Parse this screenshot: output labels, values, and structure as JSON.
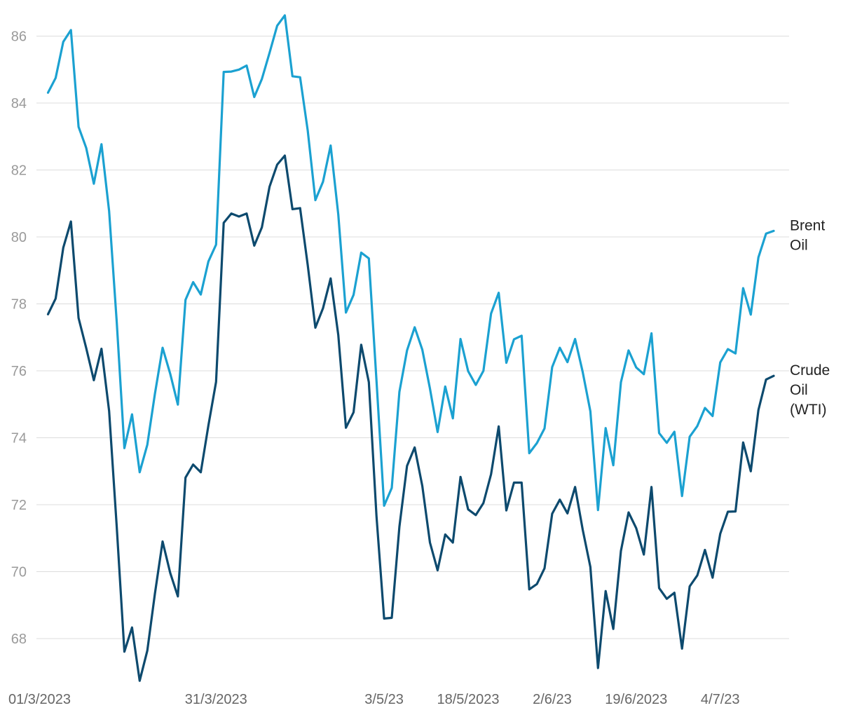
{
  "chart_data": {
    "type": "line",
    "title": "",
    "xlabel": "",
    "ylabel": "",
    "ylim": [
      67,
      87
    ],
    "y_ticks": [
      68,
      70,
      72,
      74,
      76,
      78,
      80,
      82,
      84,
      86
    ],
    "x_tick_labels": [
      "01/3/2023",
      "31/3/2023",
      "3/5/23",
      "18/5/2023",
      "2/6/23",
      "19/6/2023",
      "4/7/23"
    ],
    "x_tick_positions": [
      0,
      22,
      44,
      55,
      66,
      77,
      88
    ],
    "grid": true,
    "legend": "right-inline",
    "series": [
      {
        "name": "Brent Oil",
        "color": "#1ba1d1",
        "values": [
          84.31,
          84.75,
          85.83,
          86.18,
          83.29,
          82.66,
          81.59,
          82.77,
          80.77,
          77.45,
          73.69,
          74.7,
          72.97,
          73.79,
          75.32,
          76.69,
          75.91,
          74.99,
          78.12,
          78.65,
          78.28,
          79.27,
          79.77,
          84.93,
          84.94,
          85.0,
          85.12,
          84.18,
          84.72,
          85.5,
          86.31,
          86.62,
          84.8,
          84.77,
          83.18,
          81.1,
          81.65,
          82.73,
          80.67,
          77.74,
          78.27,
          79.53,
          79.36,
          75.71,
          71.97,
          72.5,
          75.37,
          76.61,
          77.3,
          76.63,
          75.47,
          74.17,
          75.53,
          74.58,
          76.95,
          75.99,
          75.58,
          76.0,
          77.71,
          78.33,
          76.24,
          76.94,
          77.05,
          73.54,
          73.84,
          74.28,
          76.11,
          76.69,
          76.26,
          76.95,
          75.96,
          74.79,
          71.84,
          74.29,
          73.18,
          75.66,
          76.61,
          76.1,
          75.9,
          77.12,
          74.14,
          73.85,
          74.18,
          72.26,
          74.03,
          74.35,
          74.89,
          74.65,
          76.25,
          76.65,
          76.52,
          78.47,
          77.68,
          79.39,
          80.1,
          80.18
        ]
      },
      {
        "name": "Crude Oil\n(WTI)",
        "color": "#0d4a6e",
        "values": [
          77.69,
          78.16,
          79.68,
          80.46,
          77.58,
          76.68,
          75.72,
          76.66,
          74.8,
          71.33,
          67.61,
          68.33,
          66.74,
          67.64,
          69.35,
          70.9,
          69.96,
          69.26,
          72.81,
          73.2,
          72.97,
          74.37,
          75.67,
          80.42,
          80.7,
          80.61,
          80.7,
          79.74,
          80.29,
          81.5,
          82.16,
          82.43,
          80.83,
          80.86,
          79.16,
          77.29,
          77.87,
          78.76,
          77.07,
          74.3,
          74.76,
          76.78,
          75.66,
          71.66,
          68.6,
          68.62,
          71.34,
          73.16,
          73.71,
          72.56,
          70.87,
          70.04,
          71.11,
          70.87,
          72.83,
          71.86,
          71.69,
          72.05,
          72.91,
          74.34,
          71.83,
          72.66,
          72.66,
          69.47,
          69.63,
          70.1,
          71.73,
          72.15,
          71.74,
          72.53,
          71.25,
          70.14,
          67.12,
          69.42,
          68.29,
          70.62,
          71.77,
          71.3,
          70.51,
          72.53,
          69.51,
          69.19,
          69.37,
          67.7,
          69.56,
          69.89,
          70.65,
          69.82,
          71.13,
          71.79,
          71.8,
          73.86,
          73.0,
          74.83,
          75.74,
          75.85
        ]
      }
    ]
  }
}
